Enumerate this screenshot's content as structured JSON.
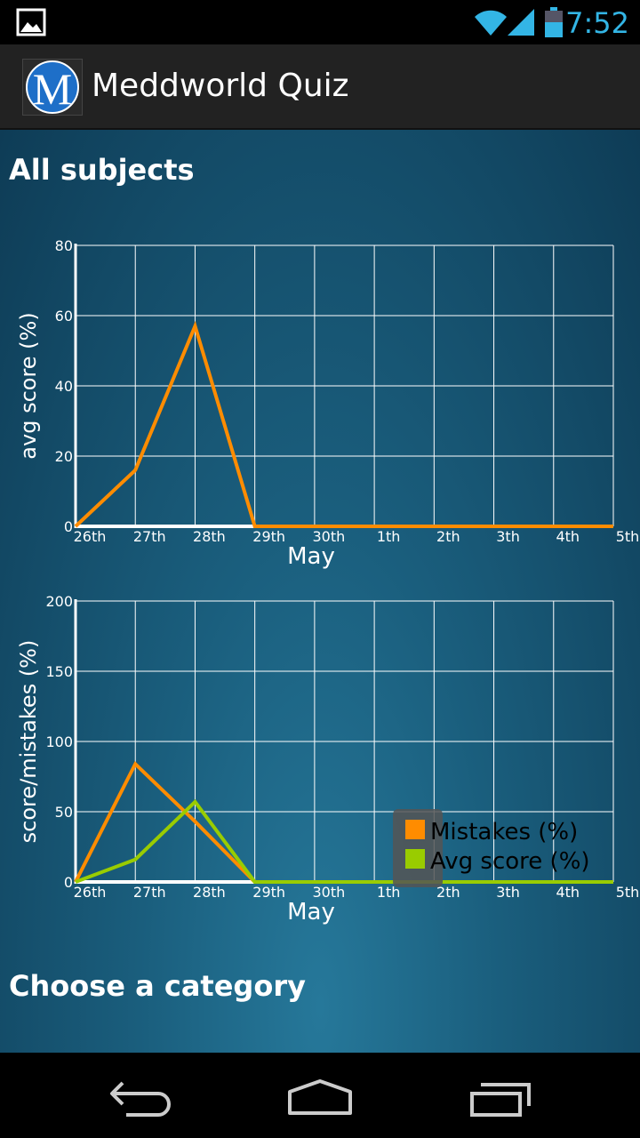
{
  "status_bar": {
    "time": "7:52",
    "icons": [
      "gallery-icon",
      "wifi-icon",
      "signal-icon",
      "battery-icon"
    ],
    "accent_color": "#33b5e5"
  },
  "action_bar": {
    "logo_letter": "M",
    "title": "Meddworld Quiz"
  },
  "main": {
    "heading": "All subjects",
    "footer_heading": "Choose a category"
  },
  "nav_bar": {
    "icons": [
      "back-icon",
      "home-icon",
      "recent-apps-icon"
    ]
  },
  "chart_data": [
    {
      "type": "line",
      "categories": [
        "26th",
        "27th",
        "28th",
        "29th",
        "30th",
        "1th",
        "2th",
        "3th",
        "4th",
        "5th"
      ],
      "xlabel": "May",
      "ylabel": "avg score (%)",
      "ylim": [
        0,
        80
      ],
      "yticks": [
        "0",
        "20",
        "40",
        "60",
        "80"
      ],
      "grid": true,
      "series": [
        {
          "color": "#ff8c00",
          "values": [
            0,
            16,
            57,
            0,
            0,
            0,
            0,
            0,
            0,
            0
          ]
        }
      ]
    },
    {
      "type": "line",
      "categories": [
        "26th",
        "27th",
        "28th",
        "29th",
        "30th",
        "1th",
        "2th",
        "3th",
        "4th",
        "5th"
      ],
      "xlabel": "May",
      "ylabel": "score/mistakes (%)",
      "ylim": [
        0,
        200
      ],
      "yticks": [
        "0",
        "50",
        "100",
        "150",
        "200"
      ],
      "grid": true,
      "legend": "right",
      "series": [
        {
          "name": "Mistakes (%)",
          "color": "#ff8c00",
          "values": [
            0,
            84,
            43,
            0,
            0,
            0,
            0,
            0,
            0,
            0
          ]
        },
        {
          "name": "Avg score (%)",
          "color": "#99cc00",
          "values": [
            0,
            16,
            57,
            0,
            0,
            0,
            0,
            0,
            0,
            0
          ]
        }
      ]
    }
  ]
}
